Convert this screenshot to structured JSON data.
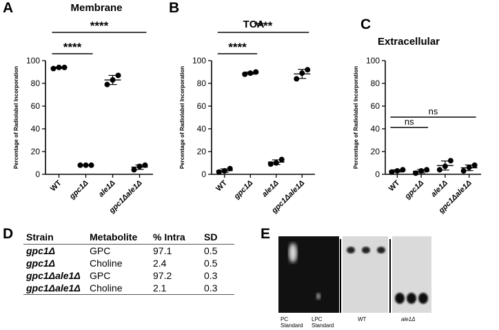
{
  "panels": {
    "a": "A",
    "b": "B",
    "c": "C",
    "d": "D",
    "e": "E"
  },
  "chart_data": [
    {
      "type": "scatter",
      "title": "Membrane",
      "ylabel": "Percentage of Radiolabel Incorporation",
      "ylim": [
        0,
        100
      ],
      "yticks": [
        "0",
        "20",
        "40",
        "60",
        "80",
        "100"
      ],
      "categories": [
        "WT",
        "gpc1Δ",
        "ale1Δ",
        "gpc1Δale1Δ"
      ],
      "series": [
        {
          "values": [
            [
              93,
              94,
              94
            ],
            [
              8,
              8,
              8
            ],
            [
              79,
              83,
              87
            ],
            [
              4,
              7,
              8
            ]
          ],
          "mean": [
            93.7,
            8,
            83,
            6.3
          ],
          "sd": [
            0.6,
            0,
            4,
            2
          ]
        }
      ],
      "brackets": [
        {
          "from": 0,
          "to": 1,
          "label": "****"
        },
        {
          "from": 0,
          "to": 3,
          "label": "****"
        }
      ]
    },
    {
      "type": "scatter",
      "title": "TCA",
      "ylabel": "Percentage of Radiolabel Incorporation",
      "ylim": [
        0,
        100
      ],
      "yticks": [
        "0",
        "20",
        "40",
        "60",
        "80",
        "100"
      ],
      "categories": [
        "WT",
        "gpc1Δ",
        "ale1Δ",
        "gpc1Δale1Δ"
      ],
      "series": [
        {
          "values": [
            [
              2,
              3,
              5
            ],
            [
              88,
              89,
              90
            ],
            [
              9,
              10,
              13
            ],
            [
              84,
              89,
              92
            ]
          ],
          "mean": [
            3.3,
            89,
            10.7,
            88.3
          ],
          "sd": [
            1.5,
            1,
            2,
            4
          ]
        }
      ],
      "brackets": [
        {
          "from": 0,
          "to": 1,
          "label": "****"
        },
        {
          "from": 0,
          "to": 3,
          "label": "****"
        }
      ]
    },
    {
      "type": "scatter",
      "title": "Extracellular",
      "ylabel": "Percentage of Radiolabel Incorporation",
      "ylim": [
        0,
        100
      ],
      "yticks": [
        "0",
        "20",
        "40",
        "60",
        "80",
        "100"
      ],
      "categories": [
        "WT",
        "gpc1Δ",
        "ale1Δ",
        "gpc1Δale1Δ"
      ],
      "series": [
        {
          "values": [
            [
              2,
              3,
              4
            ],
            [
              1,
              3,
              4
            ],
            [
              4,
              7,
              12
            ],
            [
              3,
              6,
              8
            ]
          ],
          "mean": [
            3,
            2.7,
            7.7,
            5.7
          ],
          "sd": [
            1,
            1.5,
            4,
            2.5
          ]
        }
      ],
      "brackets": [
        {
          "from": 0,
          "to": 1,
          "label": "ns"
        },
        {
          "from": 0,
          "to": 3,
          "label": "ns"
        }
      ]
    }
  ],
  "table": {
    "headers": [
      "Strain",
      "Metabolite",
      "% Intra",
      "SD"
    ],
    "rows": [
      [
        "gpc1Δ",
        "GPC",
        "97.1",
        "0.5"
      ],
      [
        "gpc1Δ",
        "Choline",
        "2.4",
        "0.5"
      ],
      [
        "gpc1Δale1Δ",
        "GPC",
        "97.2",
        "0.3"
      ],
      [
        "gpc1Δale1Δ",
        "Choline",
        "2.1",
        "0.3"
      ]
    ]
  },
  "gel": {
    "labels": {
      "pc": "PC\nStandard",
      "lpc": "LPC\nStandard",
      "wt": "WT",
      "ale1": "ale1Δ"
    }
  }
}
